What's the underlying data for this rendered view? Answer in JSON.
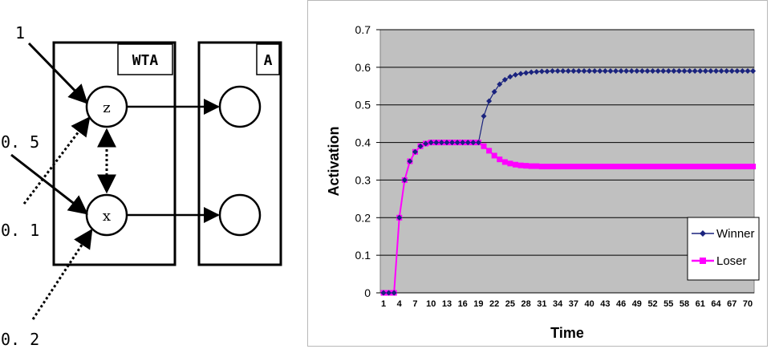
{
  "diagram": {
    "inputs": {
      "in_z_strong": "1",
      "in_x_strong": "0. 5",
      "in_z_weak": "0. 1",
      "in_x_weak": "0. 2"
    },
    "boxes": {
      "wta": "WTA",
      "a": "A"
    },
    "nodes": {
      "z": "z",
      "x": "x"
    }
  },
  "chart_data": {
    "type": "line",
    "xlabel": "Time",
    "ylabel": "Activation",
    "ylim": [
      0,
      0.7
    ],
    "yticks": [
      "0",
      "0.1",
      "0.2",
      "0.3",
      "0.4",
      "0.5",
      "0.6",
      "0.7"
    ],
    "xlim": [
      1,
      70
    ],
    "xticks": [
      "1",
      "4",
      "7",
      "10",
      "13",
      "16",
      "19",
      "22",
      "25",
      "28",
      "31",
      "34",
      "37",
      "40",
      "43",
      "46",
      "49",
      "52",
      "55",
      "58",
      "61",
      "64",
      "67",
      "70"
    ],
    "grid": true,
    "plot_background": "#c0c0c0",
    "legend_position": "right",
    "x": [
      1,
      2,
      3,
      4,
      5,
      6,
      7,
      8,
      9,
      10,
      11,
      12,
      13,
      14,
      15,
      16,
      17,
      18,
      19,
      20,
      21,
      22,
      23,
      24,
      25,
      26,
      27,
      28,
      29,
      30,
      31,
      32,
      33,
      34,
      35,
      36,
      37,
      38,
      39,
      40,
      41,
      42,
      43,
      44,
      45,
      46,
      47,
      48,
      49,
      50,
      51,
      52,
      53,
      54,
      55,
      56,
      57,
      58,
      59,
      60,
      61,
      62,
      63,
      64,
      65,
      66,
      67,
      68,
      69,
      70,
      71
    ],
    "series": [
      {
        "name": "Winner",
        "color": "#1a237e",
        "marker": "diamond",
        "values": [
          0,
          0,
          0,
          0.2,
          0.3,
          0.35,
          0.375,
          0.39,
          0.397,
          0.4,
          0.4,
          0.4,
          0.4,
          0.4,
          0.4,
          0.4,
          0.4,
          0.4,
          0.4,
          0.47,
          0.51,
          0.535,
          0.555,
          0.567,
          0.575,
          0.58,
          0.583,
          0.585,
          0.587,
          0.588,
          0.589,
          0.589,
          0.59,
          0.59,
          0.59,
          0.59,
          0.59,
          0.59,
          0.59,
          0.59,
          0.59,
          0.59,
          0.59,
          0.59,
          0.59,
          0.59,
          0.59,
          0.59,
          0.59,
          0.59,
          0.59,
          0.59,
          0.59,
          0.59,
          0.59,
          0.59,
          0.59,
          0.59,
          0.59,
          0.59,
          0.59,
          0.59,
          0.59,
          0.59,
          0.59,
          0.59,
          0.59,
          0.59,
          0.59,
          0.59,
          0.59
        ]
      },
      {
        "name": "Loser",
        "color": "#ff00ff",
        "marker": "square",
        "values": [
          0,
          0,
          0,
          0.2,
          0.3,
          0.35,
          0.375,
          0.39,
          0.397,
          0.4,
          0.4,
          0.4,
          0.4,
          0.4,
          0.4,
          0.4,
          0.4,
          0.4,
          0.4,
          0.39,
          0.378,
          0.365,
          0.355,
          0.348,
          0.344,
          0.341,
          0.339,
          0.338,
          0.337,
          0.337,
          0.336,
          0.336,
          0.336,
          0.336,
          0.336,
          0.336,
          0.336,
          0.336,
          0.336,
          0.336,
          0.336,
          0.336,
          0.336,
          0.336,
          0.336,
          0.336,
          0.336,
          0.336,
          0.336,
          0.336,
          0.336,
          0.336,
          0.336,
          0.336,
          0.336,
          0.336,
          0.336,
          0.336,
          0.336,
          0.336,
          0.336,
          0.336,
          0.336,
          0.336,
          0.336,
          0.336,
          0.336,
          0.336,
          0.336,
          0.336,
          0.336
        ]
      }
    ]
  }
}
